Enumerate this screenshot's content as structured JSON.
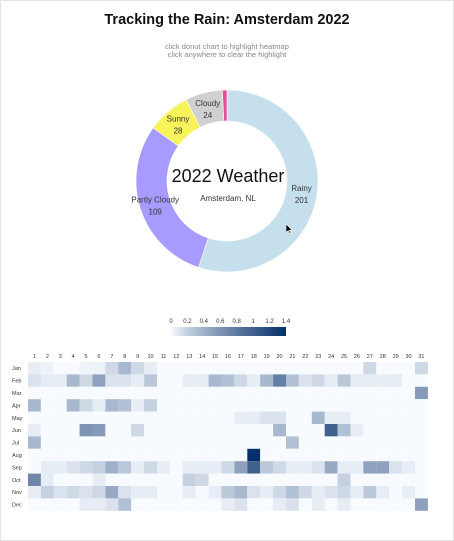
{
  "header": {
    "title": "Tracking the Rain: Amsterdam 2022",
    "hint_line1": "click donut chart to highlight heatmap",
    "hint_line2": "click anywhere to clear the highlight"
  },
  "chart_data": [
    {
      "type": "pie",
      "variant": "donut",
      "title": "2022 Weather",
      "subtitle": "Amsterdam, NL",
      "slices": [
        {
          "label": "Rainy",
          "value": 201,
          "color": "#c6dfec"
        },
        {
          "label": "Partly Cloudy",
          "value": 109,
          "color": "#a79bff"
        },
        {
          "label": "Sunny",
          "value": 28,
          "color": "#f7f35b"
        },
        {
          "label": "Cloudy",
          "value": 24,
          "color": "#d0d0d0"
        },
        {
          "label": "",
          "value": 3,
          "color": "#e94b9c"
        }
      ]
    },
    {
      "type": "heatmap",
      "x": [
        "1",
        "2",
        "3",
        "4",
        "5",
        "6",
        "7",
        "8",
        "9",
        "10",
        "11",
        "12",
        "13",
        "14",
        "15",
        "16",
        "17",
        "18",
        "19",
        "20",
        "21",
        "22",
        "23",
        "24",
        "25",
        "26",
        "27",
        "28",
        "29",
        "30",
        "31"
      ],
      "y": [
        "Jan",
        "Feb",
        "Mar",
        "Apr",
        "May",
        "Jun",
        "Jul",
        "Aug",
        "Sep",
        "Oct",
        "Nov",
        "Dec"
      ],
      "colorbar": {
        "ticks": [
          "0",
          "0.2",
          "0.4",
          "0.6",
          "0.8",
          "1",
          "1.2",
          "1.4"
        ],
        "range": [
          0,
          1.4
        ],
        "colors": [
          "#f7fbff",
          "#08306b"
        ]
      },
      "values": [
        [
          0.05,
          0.03,
          0.0,
          0.0,
          0.02,
          0.03,
          0.15,
          0.35,
          0.15,
          0.05,
          0.0,
          0.0,
          0.0,
          0.0,
          0.0,
          0.0,
          0.0,
          0.0,
          0.0,
          0.0,
          0.0,
          0.0,
          0.0,
          0.0,
          0.0,
          0.0,
          0.15,
          0.0,
          0.0,
          0.0,
          0.15
        ],
        [
          0.1,
          0.05,
          0.05,
          0.35,
          0.15,
          0.5,
          0.1,
          0.1,
          0.05,
          0.25,
          0.0,
          0.0,
          0.05,
          0.05,
          0.35,
          0.3,
          0.15,
          0.05,
          0.35,
          0.75,
          0.3,
          0.1,
          0.15,
          0.05,
          0.25,
          0.05,
          0.05,
          0.05,
          0.05,
          0.0,
          0.0
        ],
        [
          0.0,
          0.0,
          0.0,
          0.0,
          0.0,
          0.0,
          0.0,
          0.0,
          0.0,
          0.0,
          0.0,
          0.0,
          0.0,
          0.0,
          0.0,
          0.0,
          0.0,
          0.0,
          0.0,
          0.0,
          0.0,
          0.0,
          0.0,
          0.0,
          0.0,
          0.0,
          0.0,
          0.0,
          0.0,
          0.0,
          0.55
        ],
        [
          0.35,
          0.0,
          0.0,
          0.35,
          0.15,
          0.05,
          0.35,
          0.3,
          0.05,
          0.2,
          0.0,
          0.0,
          0.0,
          0.0,
          0.0,
          0.0,
          0.0,
          0.0,
          0.0,
          0.0,
          0.0,
          0.0,
          0.0,
          0.0,
          0.0,
          0.0,
          0.0,
          0.0,
          0.0,
          0.0,
          0.0
        ],
        [
          0.0,
          0.0,
          0.0,
          0.0,
          0.0,
          0.0,
          0.0,
          0.0,
          0.0,
          0.0,
          0.0,
          0.0,
          0.0,
          0.0,
          0.0,
          0.0,
          0.05,
          0.05,
          0.1,
          0.1,
          0.0,
          0.0,
          0.35,
          0.05,
          0.05,
          0.0,
          0.0,
          0.0,
          0.0,
          0.0,
          0.0
        ],
        [
          0.05,
          0.0,
          0.0,
          0.0,
          0.6,
          0.55,
          0.0,
          0.0,
          0.15,
          0.0,
          0.0,
          0.0,
          0.0,
          0.0,
          0.0,
          0.0,
          0.0,
          0.0,
          0.0,
          0.35,
          0.0,
          0.0,
          0.0,
          1.0,
          0.3,
          0.05,
          0.0,
          0.0,
          0.0,
          0.0,
          0.0
        ],
        [
          0.35,
          0.0,
          0.0,
          0.0,
          0.0,
          0.0,
          0.0,
          0.0,
          0.0,
          0.0,
          0.0,
          0.0,
          0.0,
          0.0,
          0.0,
          0.0,
          0.0,
          0.0,
          0.0,
          0.0,
          0.3,
          0.0,
          0.0,
          0.0,
          0.0,
          0.0,
          0.0,
          0.0,
          0.0,
          0.0,
          0.0
        ],
        [
          0.0,
          0.0,
          0.0,
          0.0,
          0.0,
          0.0,
          0.0,
          0.0,
          0.0,
          0.0,
          0.0,
          0.0,
          0.0,
          0.0,
          0.0,
          0.0,
          0.0,
          1.4,
          0.0,
          0.0,
          0.0,
          0.0,
          0.0,
          0.0,
          0.0,
          0.0,
          0.0,
          0.0,
          0.0,
          0.0,
          0.0
        ],
        [
          0.0,
          0.05,
          0.05,
          0.1,
          0.15,
          0.2,
          0.4,
          0.25,
          0.05,
          0.15,
          0.05,
          0.0,
          0.05,
          0.05,
          0.05,
          0.15,
          0.5,
          1.0,
          0.25,
          0.15,
          0.05,
          0.05,
          0.1,
          0.45,
          0.05,
          0.05,
          0.5,
          0.5,
          0.1,
          0.05,
          0.0
        ],
        [
          0.7,
          0.05,
          0.0,
          0.0,
          0.0,
          0.05,
          0.0,
          0.0,
          0.0,
          0.0,
          0.0,
          0.0,
          0.2,
          0.15,
          0.0,
          0.0,
          0.0,
          0.0,
          0.0,
          0.0,
          0.0,
          0.0,
          0.0,
          0.0,
          0.2,
          0.0,
          0.0,
          0.0,
          0.0,
          0.0,
          0.0
        ],
        [
          0.05,
          0.2,
          0.1,
          0.15,
          0.1,
          0.15,
          0.45,
          0.1,
          0.05,
          0.05,
          0.0,
          0.0,
          0.05,
          0.0,
          0.05,
          0.25,
          0.35,
          0.1,
          0.05,
          0.15,
          0.3,
          0.15,
          0.05,
          0.1,
          0.15,
          0.05,
          0.25,
          0.05,
          0.0,
          0.05,
          0.0
        ],
        [
          0.0,
          0.0,
          0.0,
          0.0,
          0.05,
          0.05,
          0.1,
          0.3,
          0.0,
          0.0,
          0.0,
          0.0,
          0.0,
          0.0,
          0.0,
          0.05,
          0.1,
          0.0,
          0.0,
          0.05,
          0.1,
          0.0,
          0.05,
          0.0,
          0.05,
          0.0,
          0.0,
          0.0,
          0.0,
          0.0,
          0.5
        ]
      ]
    }
  ]
}
